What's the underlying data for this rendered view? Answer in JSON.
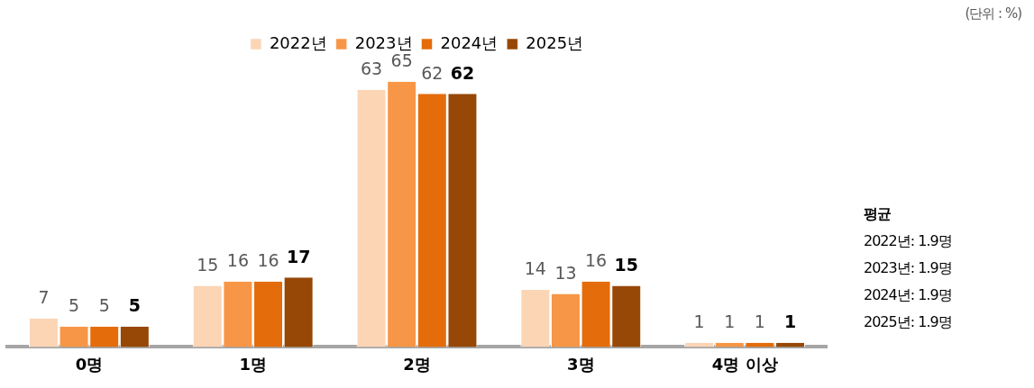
{
  "chart_data": {
    "type": "bar",
    "categories": [
      "0명",
      "1명",
      "2명",
      "3명",
      "4명 이상"
    ],
    "series": [
      {
        "name": "2022년",
        "color": "#fcd5b5",
        "values": [
          7,
          15,
          63,
          14,
          1
        ]
      },
      {
        "name": "2023년",
        "color": "#f79646",
        "values": [
          5,
          16,
          65,
          13,
          1
        ]
      },
      {
        "name": "2024년",
        "color": "#e46c0a",
        "values": [
          5,
          16,
          62,
          16,
          1
        ]
      },
      {
        "name": "2025년",
        "color": "#974706",
        "values": [
          5,
          17,
          62,
          15,
          1
        ]
      }
    ],
    "data_labels": true,
    "legend": "top",
    "grid": false,
    "annotations": [
      "(단위 : %)",
      "평균",
      "2022년: 1.9명",
      "2023년: 1.9명",
      "2024년: 1.9명",
      "2025년: 1.9명"
    ]
  }
}
